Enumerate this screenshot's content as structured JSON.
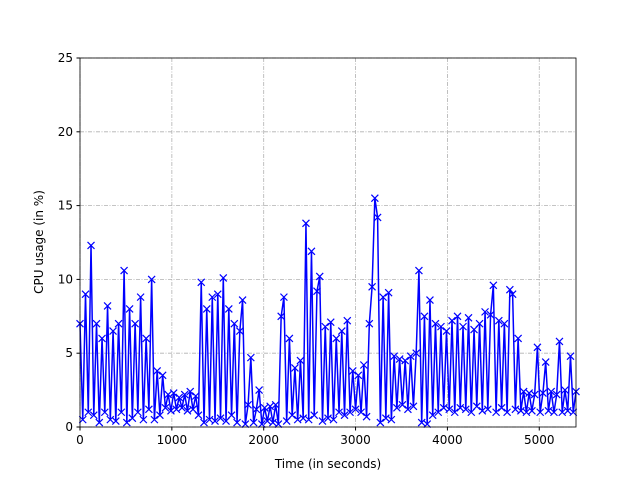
{
  "chart_data": {
    "type": "line",
    "x_label": "Time (in seconds)",
    "y_label": "CPU usage (in %)",
    "xlim": [
      0,
      5400
    ],
    "ylim": [
      0,
      25
    ],
    "xticks": [
      0,
      1000,
      2000,
      3000,
      4000,
      5000
    ],
    "yticks": [
      0,
      5,
      10,
      15,
      20,
      25
    ],
    "grid": true,
    "x": [
      0,
      30,
      60,
      90,
      120,
      150,
      180,
      210,
      240,
      270,
      300,
      330,
      360,
      390,
      420,
      450,
      480,
      510,
      540,
      570,
      600,
      630,
      660,
      690,
      720,
      750,
      780,
      810,
      840,
      870,
      900,
      930,
      960,
      990,
      1020,
      1050,
      1080,
      1110,
      1140,
      1170,
      1200,
      1230,
      1260,
      1290,
      1320,
      1350,
      1380,
      1410,
      1440,
      1470,
      1500,
      1530,
      1560,
      1590,
      1620,
      1650,
      1680,
      1710,
      1740,
      1770,
      1800,
      1830,
      1860,
      1890,
      1920,
      1950,
      1980,
      2010,
      2040,
      2070,
      2100,
      2130,
      2160,
      2190,
      2220,
      2250,
      2280,
      2310,
      2340,
      2370,
      2400,
      2430,
      2460,
      2490,
      2520,
      2550,
      2580,
      2610,
      2640,
      2670,
      2700,
      2730,
      2760,
      2790,
      2820,
      2850,
      2880,
      2910,
      2940,
      2970,
      3000,
      3030,
      3060,
      3090,
      3120,
      3150,
      3180,
      3210,
      3240,
      3270,
      3300,
      3330,
      3360,
      3390,
      3420,
      3450,
      3480,
      3510,
      3540,
      3570,
      3600,
      3630,
      3660,
      3690,
      3720,
      3750,
      3780,
      3810,
      3840,
      3870,
      3900,
      3930,
      3960,
      3990,
      4020,
      4050,
      4080,
      4110,
      4140,
      4170,
      4200,
      4230,
      4260,
      4290,
      4320,
      4350,
      4380,
      4410,
      4440,
      4470,
      4500,
      4530,
      4560,
      4590,
      4620,
      4650,
      4680,
      4710,
      4740,
      4770,
      4800,
      4830,
      4860,
      4890,
      4920,
      4950,
      4980,
      5010,
      5040,
      5070,
      5100,
      5130,
      5160,
      5190,
      5220,
      5250,
      5280,
      5310,
      5340,
      5370,
      5400
    ],
    "series": [
      {
        "color": "#0000ff",
        "marker": "x",
        "values": [
          7,
          0.5,
          9,
          1,
          12.3,
          0.8,
          7,
          0.3,
          6,
          1,
          8.2,
          0.5,
          6.5,
          0.4,
          7,
          1,
          10.6,
          0.3,
          8,
          0.6,
          7,
          1,
          8.8,
          0.5,
          6,
          1.2,
          10,
          0.5,
          3.8,
          0.8,
          3.5,
          1.3,
          2.2,
          1.1,
          2.3,
          1.2,
          2,
          1.3,
          2.2,
          1.1,
          2.4,
          1.2,
          2.1,
          0.8,
          9.8,
          0.3,
          8,
          0.5,
          8.8,
          0.4,
          9,
          0.6,
          10.1,
          0.4,
          8,
          0.8,
          7,
          0.3,
          6.5,
          8.6,
          0.2,
          1.5,
          4.7,
          0.3,
          1.2,
          2.5,
          0.2,
          1.3,
          0.4,
          1.4,
          0.3,
          1.5,
          0.2,
          7.5,
          8.8,
          0.4,
          6,
          0.8,
          4,
          0.5,
          4.5,
          0.6,
          13.8,
          0.5,
          11.9,
          0.8,
          9.2,
          10.2,
          0.4,
          6.8,
          0.6,
          7.1,
          0.5,
          6,
          1,
          6.5,
          0.8,
          7.2,
          1,
          3.8,
          1.2,
          3.5,
          1,
          4.2,
          0.7,
          7,
          9.5,
          15.5,
          14.2,
          0.3,
          8.8,
          0.6,
          9.1,
          0.5,
          4.8,
          1.3,
          4.6,
          1.5,
          4.5,
          1.2,
          4.8,
          1.4,
          5,
          10.6,
          0.3,
          7.5,
          0.2,
          8.6,
          0.8,
          7,
          1,
          6.8,
          1.3,
          6.5,
          1.2,
          7.2,
          1,
          7.5,
          1.3,
          6.8,
          1.2,
          7.4,
          1,
          6.6,
          1.4,
          7,
          1.1,
          7.8,
          1.2,
          7.6,
          9.6,
          1,
          7.2,
          1.3,
          7,
          1,
          9.3,
          9,
          1.2,
          6,
          1.1,
          2.4,
          1,
          2.3,
          1.1,
          2.2,
          5.4,
          1,
          2.3,
          4.4,
          1.1,
          2.4,
          1,
          2.2,
          5.8,
          1,
          2.5,
          1.1,
          4.8,
          1,
          2.4
        ]
      }
    ]
  }
}
